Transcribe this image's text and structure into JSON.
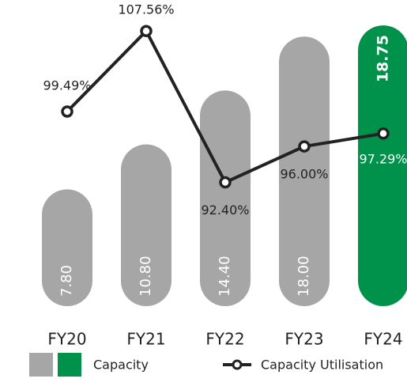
{
  "chart_data": {
    "type": "bar-line",
    "categories": [
      "FY20",
      "FY21",
      "FY22",
      "FY23",
      "FY24"
    ],
    "series": [
      {
        "name": "Capacity",
        "type": "bar",
        "color": "#a6a6a6",
        "colors": [
          "#a6a6a6",
          "#a6a6a6",
          "#a6a6a6",
          "#a6a6a6",
          "#00914a"
        ],
        "values": [
          7.8,
          10.8,
          14.4,
          18.0,
          18.75
        ],
        "value_labels": [
          "7.80",
          "10.80",
          "14.40",
          "18.00",
          "18.75"
        ]
      },
      {
        "name": "Capacity Utilisation",
        "type": "line",
        "axis": "y2",
        "color": "#222222",
        "values": [
          99.49,
          107.56,
          92.4,
          96.0,
          97.29
        ],
        "value_labels": [
          "99.49%",
          "107.56%",
          "92.40%",
          "96.00%",
          "97.29%"
        ]
      }
    ],
    "ylim": [
      0,
      20
    ],
    "y2lim": [
      80,
      110
    ],
    "legend": "bottom"
  }
}
